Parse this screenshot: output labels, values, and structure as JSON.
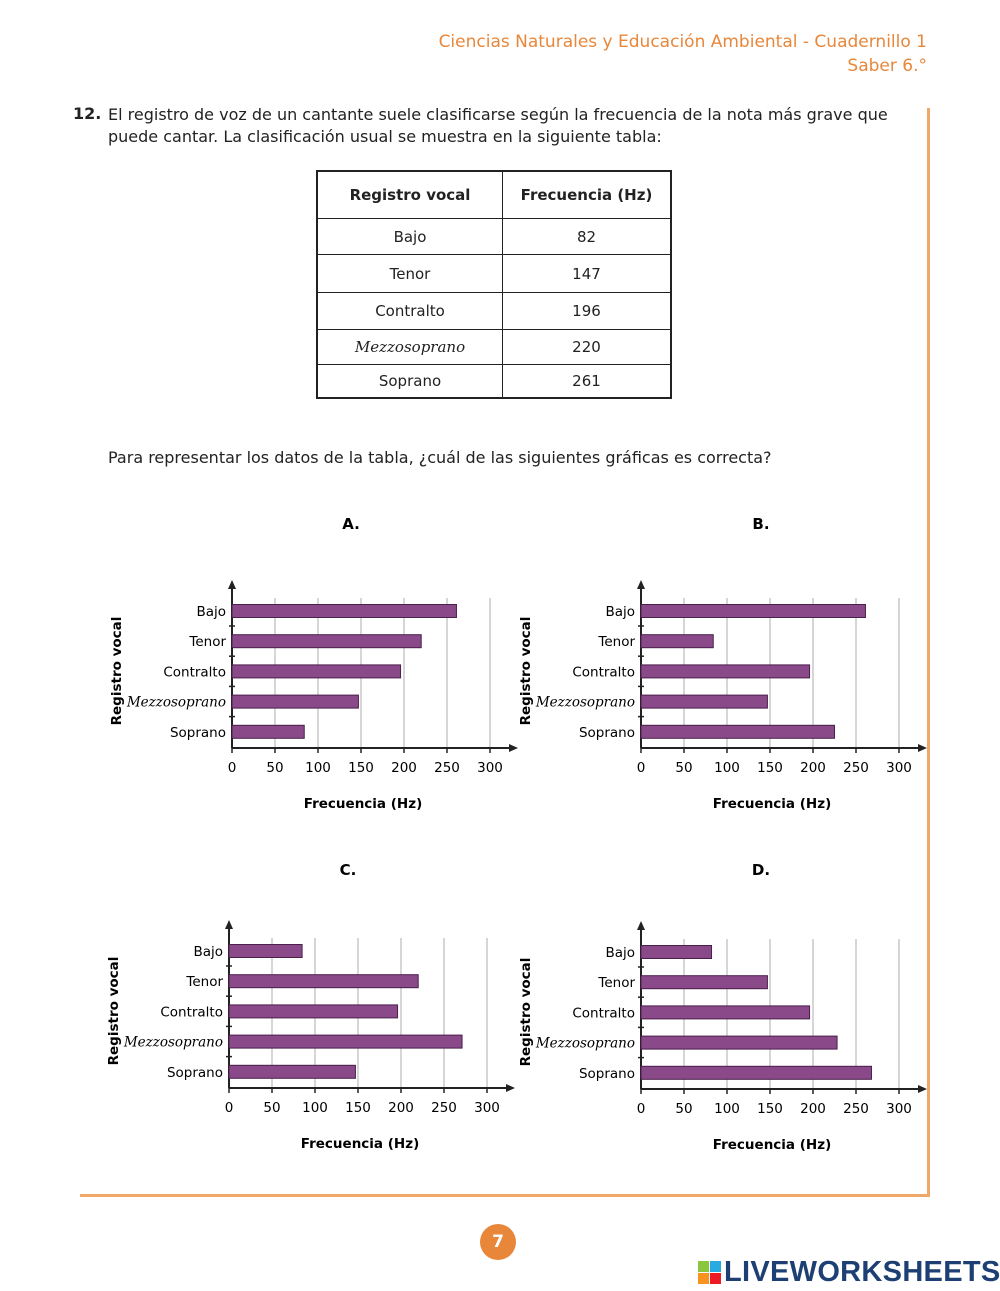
{
  "header": {
    "line1": "Ciencias Naturales y Educación Ambiental - Cuadernillo 1",
    "line2": "Saber 6.°"
  },
  "question": {
    "number": "12.",
    "text": "El registro de voz de un cantante suele clasificarse según la frecuencia de la nota más grave que puede cantar. La clasificación usual se muestra en la siguiente tabla:",
    "prompt": "Para representar los datos de la tabla, ¿cuál de las siguientes gráficas es correcta?"
  },
  "table": {
    "headers": [
      "Registro vocal",
      "Frecuencia (Hz)"
    ],
    "rows": [
      [
        "Bajo",
        "82"
      ],
      [
        "Tenor",
        "147"
      ],
      [
        "Contralto",
        "196"
      ],
      [
        "Mezzosoprano",
        "220"
      ],
      [
        "Soprano",
        "261"
      ]
    ]
  },
  "colors": {
    "bar": "#8a4a8a",
    "accent": "#e8873a",
    "border": "#f0a868"
  },
  "chart_data": [
    {
      "option": "A.",
      "type": "bar",
      "orientation": "horizontal",
      "categories": [
        "Bajo",
        "Tenor",
        "Contralto",
        "Mezzosoprano",
        "Soprano"
      ],
      "values": [
        261,
        220,
        196,
        147,
        84
      ],
      "xlabel": "Frecuencia (Hz)",
      "ylabel": "Registro vocal",
      "xlim": [
        0,
        300
      ],
      "xticks": [
        "0",
        "50",
        "100",
        "150",
        "200",
        "250",
        "300"
      ],
      "grid": true
    },
    {
      "option": "B.",
      "type": "bar",
      "orientation": "horizontal",
      "categories": [
        "Bajo",
        "Tenor",
        "Contralto",
        "Mezzosoprano",
        "Soprano"
      ],
      "values": [
        261,
        84,
        196,
        147,
        225
      ],
      "xlabel": "Frecuencia (Hz)",
      "ylabel": "Registro vocal",
      "xlim": [
        0,
        300
      ],
      "xticks": [
        "0",
        "50",
        "100",
        "150",
        "200",
        "250",
        "300"
      ],
      "grid": true
    },
    {
      "option": "C.",
      "type": "bar",
      "orientation": "horizontal",
      "categories": [
        "Bajo",
        "Tenor",
        "Contralto",
        "Mezzosoprano",
        "Soprano"
      ],
      "values": [
        85,
        220,
        196,
        271,
        147
      ],
      "xlabel": "Frecuencia (Hz)",
      "ylabel": "Registro vocal",
      "xlim": [
        0,
        300
      ],
      "xticks": [
        "0",
        "50",
        "100",
        "150",
        "200",
        "250",
        "300"
      ],
      "grid": true
    },
    {
      "option": "D.",
      "type": "bar",
      "orientation": "horizontal",
      "categories": [
        "Bajo",
        "Tenor",
        "Contralto",
        "Mezzosoprano",
        "Soprano"
      ],
      "values": [
        82,
        147,
        196,
        228,
        268
      ],
      "xlabel": "Frecuencia (Hz)",
      "ylabel": "Registro vocal",
      "xlim": [
        0,
        300
      ],
      "xticks": [
        "0",
        "50",
        "100",
        "150",
        "200",
        "250",
        "300"
      ],
      "grid": true
    }
  ],
  "page_number": "7",
  "logo": {
    "text": "LIVEWORKSHEETS",
    "letters": [
      "L",
      "I",
      "V",
      "E"
    ]
  }
}
